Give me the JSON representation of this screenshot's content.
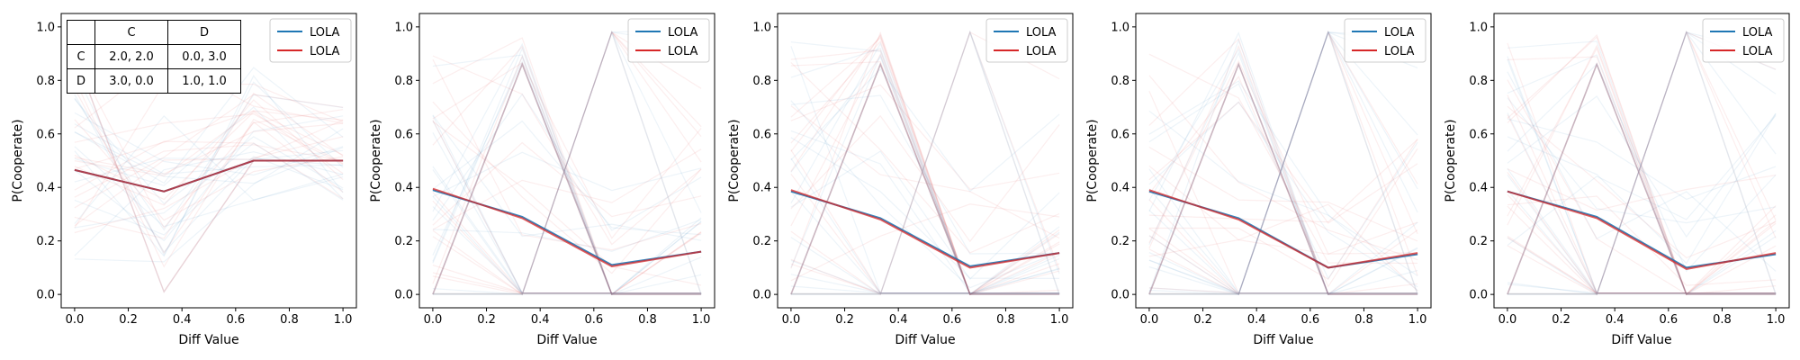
{
  "figure": {
    "ylabel": "P(Cooperate)",
    "xlabel": "Diff Value"
  },
  "payoff_table": {
    "col_headers": [
      "C",
      "D"
    ],
    "rows": [
      {
        "label": "C",
        "cells": [
          "2.0, 2.0",
          "0.0, 3.0"
        ]
      },
      {
        "label": "D",
        "cells": [
          "3.0, 0.0",
          "1.0, 1.0"
        ]
      }
    ]
  },
  "colors": {
    "blue": "#1f77b4",
    "red": "#d62728"
  },
  "chart_data": [
    {
      "type": "line",
      "xlabel": "Diff Value",
      "ylabel": "P(Cooperate)",
      "xlim": [
        -0.05,
        1.05
      ],
      "ylim": [
        -0.05,
        1.05
      ],
      "xticks": [
        "0.0",
        "0.2",
        "0.4",
        "0.6",
        "0.8",
        "1.0"
      ],
      "yticks": [
        "0.0",
        "0.2",
        "0.4",
        "0.6",
        "0.8",
        "1.0"
      ],
      "x": [
        0,
        0.333,
        0.667,
        1.0
      ],
      "legend": {
        "position": "upper right",
        "entries": [
          "LOLA",
          "LOLA"
        ]
      },
      "series": [
        {
          "name": "LOLA",
          "color": "#1f77b4",
          "values": [
            0.465,
            0.385,
            0.5,
            0.5
          ]
        },
        {
          "name": "LOLA",
          "color": "#d62728",
          "values": [
            0.465,
            0.385,
            0.5,
            0.5
          ]
        }
      ]
    },
    {
      "type": "line",
      "xlabel": "Diff Value",
      "ylabel": "P(Cooperate)",
      "xlim": [
        -0.05,
        1.05
      ],
      "ylim": [
        -0.05,
        1.05
      ],
      "xticks": [
        "0.0",
        "0.2",
        "0.4",
        "0.6",
        "0.8",
        "1.0"
      ],
      "yticks": [
        "0.0",
        "0.2",
        "0.4",
        "0.6",
        "0.8",
        "1.0"
      ],
      "x": [
        0,
        0.333,
        0.667,
        1.0
      ],
      "legend": {
        "position": "upper right",
        "entries": [
          "LOLA",
          "LOLA"
        ]
      },
      "series": [
        {
          "name": "LOLA",
          "color": "#1f77b4",
          "values": [
            0.39,
            0.29,
            0.11,
            0.16
          ]
        },
        {
          "name": "LOLA",
          "color": "#d62728",
          "values": [
            0.395,
            0.285,
            0.105,
            0.16
          ]
        }
      ]
    },
    {
      "type": "line",
      "xlabel": "Diff Value",
      "ylabel": "P(Cooperate)",
      "xlim": [
        -0.05,
        1.05
      ],
      "ylim": [
        -0.05,
        1.05
      ],
      "xticks": [
        "0.0",
        "0.2",
        "0.4",
        "0.6",
        "0.8",
        "1.0"
      ],
      "yticks": [
        "0.0",
        "0.2",
        "0.4",
        "0.6",
        "0.8",
        "1.0"
      ],
      "x": [
        0,
        0.333,
        0.667,
        1.0
      ],
      "legend": {
        "position": "upper right",
        "entries": [
          "LOLA",
          "LOLA"
        ]
      },
      "series": [
        {
          "name": "LOLA",
          "color": "#1f77b4",
          "values": [
            0.385,
            0.285,
            0.105,
            0.155
          ]
        },
        {
          "name": "LOLA",
          "color": "#d62728",
          "values": [
            0.39,
            0.28,
            0.1,
            0.155
          ]
        }
      ]
    },
    {
      "type": "line",
      "xlabel": "Diff Value",
      "ylabel": "P(Cooperate)",
      "xlim": [
        -0.05,
        1.05
      ],
      "ylim": [
        -0.05,
        1.05
      ],
      "xticks": [
        "0.0",
        "0.2",
        "0.4",
        "0.6",
        "0.8",
        "1.0"
      ],
      "yticks": [
        "0.0",
        "0.2",
        "0.4",
        "0.6",
        "0.8",
        "1.0"
      ],
      "x": [
        0,
        0.333,
        0.667,
        1.0
      ],
      "legend": {
        "position": "upper right",
        "entries": [
          "LOLA",
          "LOLA"
        ]
      },
      "series": [
        {
          "name": "LOLA",
          "color": "#1f77b4",
          "values": [
            0.385,
            0.285,
            0.1,
            0.15
          ]
        },
        {
          "name": "LOLA",
          "color": "#d62728",
          "values": [
            0.39,
            0.28,
            0.1,
            0.155
          ]
        }
      ]
    },
    {
      "type": "line",
      "xlabel": "Diff Value",
      "ylabel": "P(Cooperate)",
      "xlim": [
        -0.05,
        1.05
      ],
      "ylim": [
        -0.05,
        1.05
      ],
      "xticks": [
        "0.0",
        "0.2",
        "0.4",
        "0.6",
        "0.8",
        "1.0"
      ],
      "yticks": [
        "0.0",
        "0.2",
        "0.4",
        "0.6",
        "0.8",
        "1.0"
      ],
      "x": [
        0,
        0.333,
        0.667,
        1.0
      ],
      "legend": {
        "position": "upper right",
        "entries": [
          "LOLA",
          "LOLA"
        ]
      },
      "series": [
        {
          "name": "LOLA",
          "color": "#1f77b4",
          "values": [
            0.385,
            0.29,
            0.1,
            0.15
          ]
        },
        {
          "name": "LOLA",
          "color": "#d62728",
          "values": [
            0.385,
            0.285,
            0.095,
            0.155
          ]
        }
      ]
    }
  ]
}
